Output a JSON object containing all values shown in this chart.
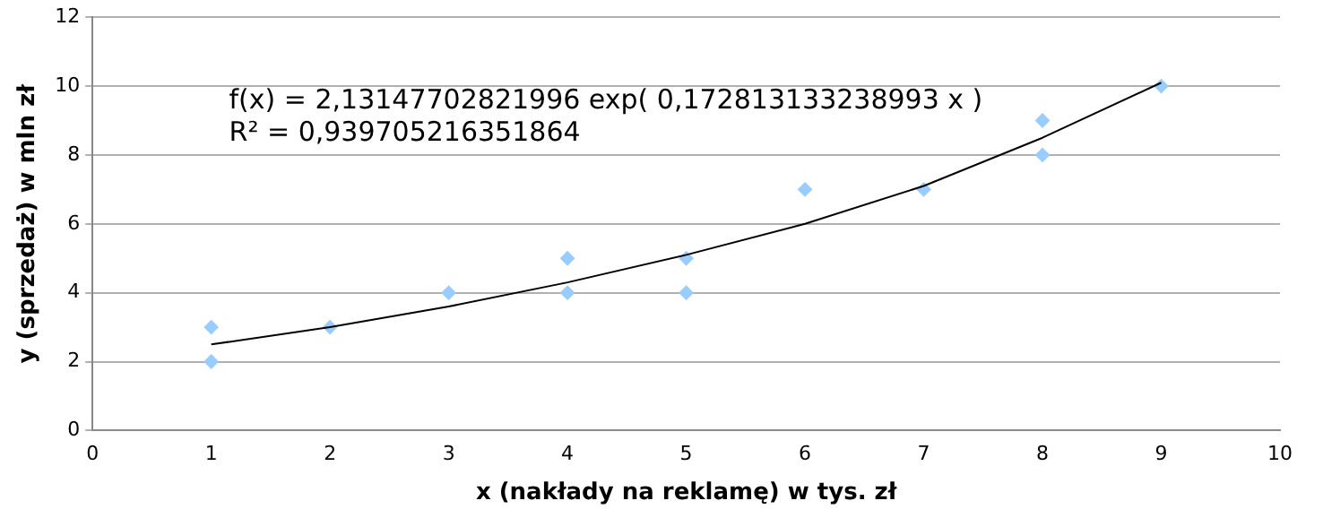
{
  "chart_data": {
    "type": "scatter",
    "xlabel": "x (nakłady na reklamę) w tys. zł",
    "ylabel": "y (sprzedaż) w mln zł",
    "series": [
      {
        "color": "#99ccff",
        "x": [
          1,
          1,
          2,
          3,
          4,
          4,
          5,
          5,
          6,
          7,
          8,
          8,
          9
        ],
        "values": [
          3,
          2,
          3,
          4,
          5,
          4,
          5,
          4,
          7,
          7,
          9,
          8,
          10
        ],
        "marker": "diamond"
      },
      {
        "type": "line",
        "color": "#000000",
        "x": [
          1,
          2,
          3,
          4,
          5,
          6,
          7,
          8,
          9
        ],
        "values": [
          2.5,
          3.0,
          3.6,
          4.3,
          5.1,
          6.0,
          7.1,
          8.5,
          10.1
        ],
        "marker": "none"
      }
    ],
    "xlim": [
      0,
      10
    ],
    "xticks": [
      0,
      1,
      2,
      3,
      4,
      5,
      6,
      7,
      8,
      9,
      10
    ],
    "ylim": [
      0,
      12
    ],
    "yticks": [
      0,
      2,
      4,
      6,
      8,
      10,
      12
    ],
    "grid": "y",
    "legend": false,
    "annotations": [
      "f(x) = 2,13147702821996 exp( 0,172813133238993 x )",
      "R² = 0,939705216351864"
    ]
  }
}
